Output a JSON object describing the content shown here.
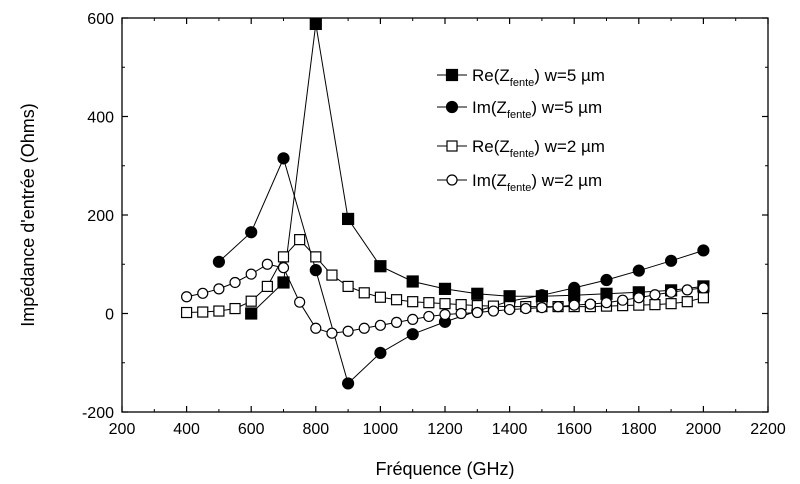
{
  "chart_data": {
    "type": "line",
    "xlabel": "Fréquence (GHz)",
    "ylabel": "Impédance d'entrée (Ohms)",
    "xlim": [
      200,
      2200
    ],
    "ylim": [
      -200,
      600
    ],
    "xticks": [
      200,
      400,
      600,
      800,
      1000,
      1200,
      1400,
      1600,
      1800,
      2000,
      2200
    ],
    "yticks": [
      -200,
      0,
      200,
      400,
      600
    ],
    "xtick_labels": [
      "200",
      "400",
      "600",
      "800",
      "1000",
      "1200",
      "1400",
      "1600",
      "1800",
      "2000",
      "2200"
    ],
    "ytick_labels": [
      "-200",
      "0",
      "200",
      "400",
      "600"
    ],
    "grid": false,
    "legend_position": "top-right",
    "series": [
      {
        "name_main": "Re(Z",
        "name_sub": "fente",
        "name_tail": ") w=5 µm",
        "marker": "square",
        "filled": true,
        "x": [
          600,
          700,
          800,
          900,
          1000,
          1100,
          1200,
          1300,
          1400,
          1500,
          1600,
          1700,
          1800,
          1900,
          2000
        ],
        "y": [
          0,
          63,
          588,
          192,
          96,
          65,
          50,
          40,
          35,
          35,
          37,
          40,
          43,
          47,
          55
        ]
      },
      {
        "name_main": "Im(Z",
        "name_sub": "fente",
        "name_tail": ")  w=5 µm",
        "marker": "circle",
        "filled": true,
        "x": [
          500,
          600,
          700,
          800,
          900,
          1000,
          1100,
          1200,
          1300,
          1400,
          1500,
          1600,
          1700,
          1800,
          1900,
          2000
        ],
        "y": [
          105,
          165,
          315,
          88,
          -142,
          -80,
          -42,
          -17,
          5,
          25,
          37,
          52,
          68,
          87,
          107,
          128
        ]
      },
      {
        "name_main": "Re(Z",
        "name_sub": "fente",
        "name_tail": ") w=2 µm",
        "marker": "square",
        "filled": false,
        "x": [
          400,
          450,
          500,
          550,
          600,
          650,
          700,
          750,
          800,
          850,
          900,
          950,
          1000,
          1050,
          1100,
          1150,
          1200,
          1250,
          1300,
          1350,
          1400,
          1450,
          1500,
          1550,
          1600,
          1650,
          1700,
          1750,
          1800,
          1850,
          1900,
          1950,
          2000
        ],
        "y": [
          2,
          3,
          5,
          10,
          25,
          55,
          115,
          150,
          115,
          78,
          55,
          42,
          33,
          28,
          24,
          22,
          20,
          18,
          16,
          15,
          14,
          14,
          14,
          14,
          14,
          14,
          15,
          16,
          17,
          18,
          20,
          24,
          32
        ]
      },
      {
        "name_main": "Im(Z",
        "name_sub": "fente",
        "name_tail": ")  w=2 µm",
        "marker": "circle",
        "filled": false,
        "x": [
          400,
          450,
          500,
          550,
          600,
          650,
          700,
          750,
          800,
          850,
          900,
          950,
          1000,
          1050,
          1100,
          1150,
          1200,
          1250,
          1300,
          1350,
          1400,
          1450,
          1500,
          1550,
          1600,
          1650,
          1700,
          1750,
          1800,
          1850,
          1900,
          1950,
          2000
        ],
        "y": [
          34,
          41,
          50,
          63,
          80,
          100,
          93,
          23,
          -30,
          -40,
          -36,
          -30,
          -24,
          -18,
          -12,
          -6,
          -2,
          0,
          2,
          5,
          8,
          10,
          12,
          14,
          17,
          19,
          22,
          27,
          32,
          38,
          43,
          48,
          52
        ]
      }
    ]
  }
}
